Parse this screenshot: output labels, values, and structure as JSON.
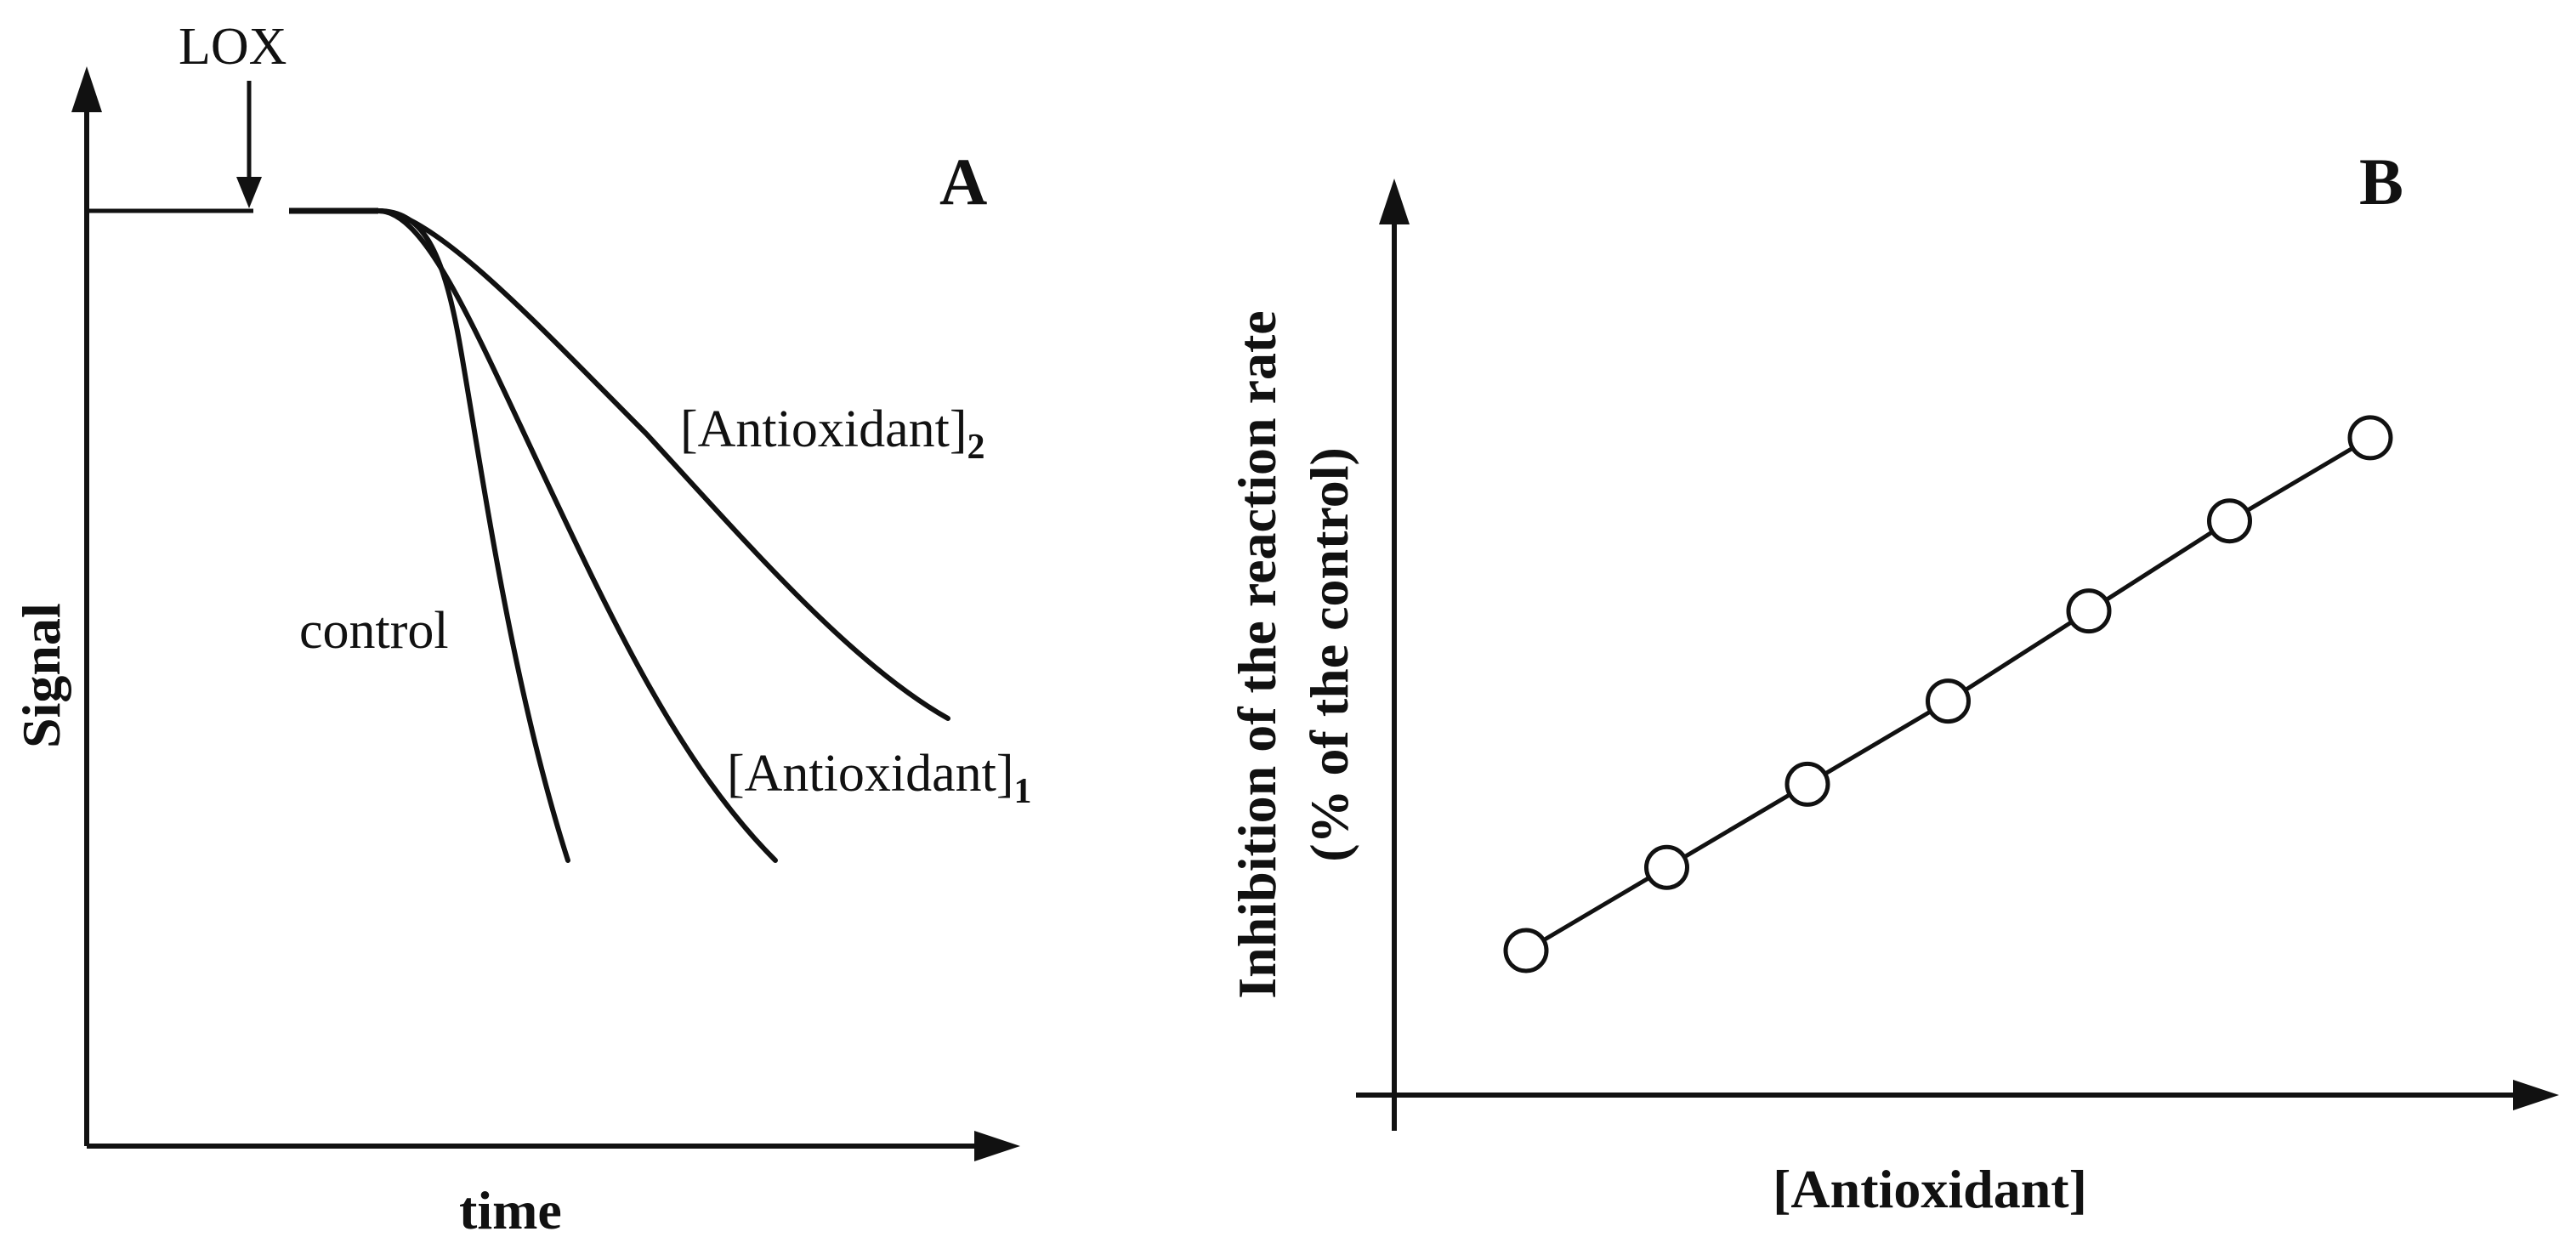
{
  "panel_a": {
    "letter": "A",
    "x_label": "time",
    "y_label": "Signal",
    "event_label": "LOX",
    "curve_labels": {
      "control": "control",
      "antioxidant_1": "[Antioxidant]",
      "antioxidant_1_sub": "1",
      "antioxidant_2": "[Antioxidant]",
      "antioxidant_2_sub": "2"
    }
  },
  "panel_b": {
    "letter": "B",
    "x_label": "[Antioxidant]",
    "y_label_line1": "Inhibition of the reaction rate",
    "y_label_line2": "(% of the control)"
  },
  "chart_data": [
    {
      "type": "line",
      "panel": "A",
      "xlabel": "time",
      "ylabel": "Signal",
      "series": [
        {
          "name": "control",
          "x": [
            0.36,
            0.4,
            0.44,
            0.48,
            0.52,
            0.56,
            0.6
          ],
          "y": [
            0.9,
            0.9,
            0.87,
            0.7,
            0.5,
            0.3,
            0.26
          ]
        },
        {
          "name": "[Antioxidant]1",
          "x": [
            0.36,
            0.4,
            0.47,
            0.55,
            0.65,
            0.75,
            0.84
          ],
          "y": [
            0.9,
            0.9,
            0.84,
            0.72,
            0.52,
            0.34,
            0.26
          ]
        },
        {
          "name": "[Antioxidant]2",
          "x": [
            0.36,
            0.4,
            0.5,
            0.62,
            0.76,
            0.9,
            1.04
          ],
          "y": [
            0.9,
            0.9,
            0.82,
            0.71,
            0.57,
            0.44,
            0.39
          ]
        }
      ],
      "baseline_level": 0.9
    },
    {
      "type": "scatter",
      "panel": "B",
      "xlabel": "[Antioxidant]",
      "ylabel": "Inhibition of the reaction rate (% of the control)",
      "series": [
        {
          "x": [
            1,
            2,
            3,
            4,
            5,
            6,
            7
          ],
          "y": [
            1.0,
            1.6,
            2.2,
            2.8,
            3.45,
            4.1,
            4.7
          ]
        }
      ]
    }
  ]
}
